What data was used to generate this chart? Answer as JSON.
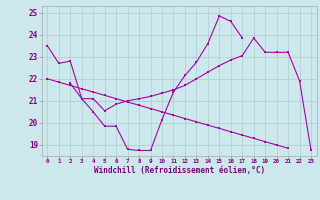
{
  "line1": {
    "x": [
      0,
      1,
      2,
      3,
      4,
      5,
      6,
      7,
      8,
      9,
      10,
      11,
      12,
      13,
      14,
      15,
      16,
      17,
      18,
      22,
      23
    ],
    "y": [
      23.5,
      22.7,
      22.8,
      21.1,
      20.5,
      19.85,
      19.85,
      18.8,
      18.75,
      18.75,
      20.15,
      21.4,
      22.15,
      22.75,
      23.6,
      24.85,
      24.6,
      23.85,
      null,
      21.9,
      18.75
    ]
  },
  "line2": {
    "x": [
      0,
      1,
      2,
      3,
      4,
      5,
      6,
      7,
      8,
      9,
      10,
      11,
      12,
      13,
      14,
      15,
      16,
      17,
      18,
      19,
      20,
      21,
      22,
      23
    ],
    "y": [
      22.0,
      21.85,
      21.7,
      21.55,
      21.4,
      21.25,
      21.1,
      20.95,
      20.8,
      20.65,
      20.5,
      20.35,
      20.2,
      20.05,
      19.9,
      19.75,
      19.6,
      19.45,
      19.3,
      19.15,
      19.0,
      18.85,
      null,
      null
    ]
  },
  "line3": {
    "x": [
      2,
      3,
      4,
      5,
      6,
      7,
      8,
      9,
      10,
      11,
      12,
      13,
      14,
      15,
      16,
      17,
      18,
      19,
      20,
      21,
      22
    ],
    "y": [
      21.8,
      21.1,
      21.1,
      20.55,
      20.85,
      21.0,
      21.1,
      21.2,
      21.35,
      21.5,
      21.7,
      22.0,
      22.3,
      22.6,
      22.85,
      23.05,
      23.85,
      23.2,
      23.2,
      23.2,
      21.9
    ]
  },
  "color": "#800080",
  "line_color": "#aa00aa",
  "bg_color": "#cce8ec",
  "grid_color": "#aacccc",
  "xlabel": "Windchill (Refroidissement éolien,°C)",
  "xlim": [
    -0.5,
    23.5
  ],
  "ylim": [
    18.5,
    25.3
  ],
  "yticks": [
    19,
    20,
    21,
    22,
    23,
    24,
    25
  ],
  "xticks": [
    0,
    1,
    2,
    3,
    4,
    5,
    6,
    7,
    8,
    9,
    10,
    11,
    12,
    13,
    14,
    15,
    16,
    17,
    18,
    19,
    20,
    21,
    22,
    23
  ]
}
